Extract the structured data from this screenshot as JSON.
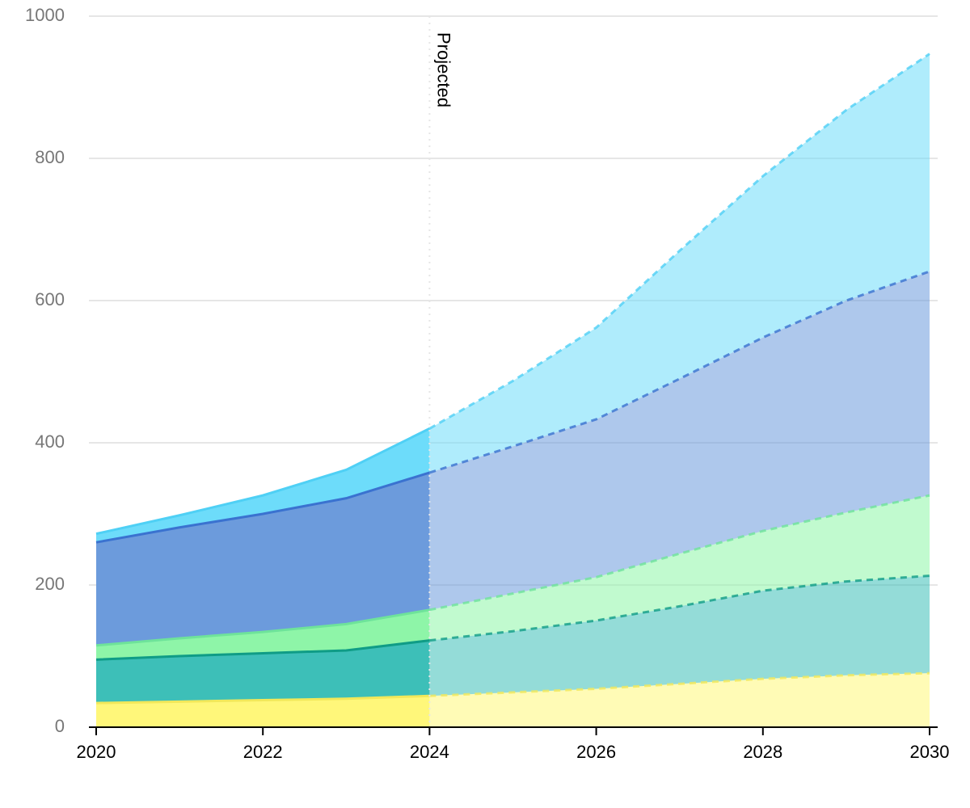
{
  "chart_data": {
    "type": "stacked-area",
    "x": [
      2020,
      2021,
      2022,
      2023,
      2024,
      2025,
      2026,
      2027,
      2028,
      2029,
      2030
    ],
    "series": [
      {
        "color": "#fff77a",
        "line_color": "#f2e85a",
        "values": [
          34,
          36,
          38,
          40,
          44,
          49,
          54,
          61,
          68,
          73,
          76
        ]
      },
      {
        "color": "#3dbfb8",
        "line_color": "#0f9c86",
        "values": [
          61,
          64,
          66,
          68,
          78,
          86,
          96,
          109,
          124,
          132,
          137
        ]
      },
      {
        "color": "#8ef5a8",
        "line_color": "#6ee39a",
        "values": [
          20,
          25,
          30,
          37,
          43,
          53,
          61,
          74,
          84,
          97,
          113
        ]
      },
      {
        "color": "#6c9bdc",
        "line_color": "#3a72d0",
        "values": [
          145,
          156,
          166,
          177,
          193,
          207,
          222,
          246,
          272,
          298,
          315
        ]
      },
      {
        "color": "#6ddcfa",
        "line_color": "#4fd0f5",
        "values": [
          12,
          17,
          26,
          40,
          62,
          92,
          129,
          180,
          227,
          268,
          306
        ]
      }
    ],
    "annotation": {
      "text": "Projected",
      "x": 2024
    },
    "xlim": [
      2020,
      2030
    ],
    "xticks": [
      2020,
      2022,
      2024,
      2026,
      2028,
      2030
    ],
    "ylim": [
      0,
      1000
    ],
    "yticks": [
      0,
      200,
      400,
      600,
      800,
      1000
    ],
    "grid": true
  }
}
